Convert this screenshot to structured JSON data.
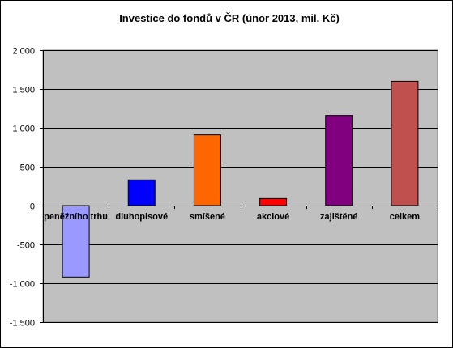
{
  "chart_data": {
    "type": "bar",
    "title": "Investice do fondů v ČR (únor 2013, mil. Kč)",
    "xlabel": "",
    "ylabel": "",
    "categories": [
      "peněžního trhu",
      "dluhopisové",
      "smíšené",
      "akciové",
      "zajištěné",
      "celkem"
    ],
    "values": [
      -920,
      330,
      910,
      90,
      1160,
      1600
    ],
    "ylim": [
      -1500,
      2000
    ],
    "yticks": [
      2000,
      1500,
      1000,
      500,
      0,
      -500,
      -1000,
      -1500
    ],
    "ytick_labels": [
      "2 000",
      "1 500",
      "1 000",
      "500",
      "0",
      "-500",
      "-1 000",
      "-1 500"
    ],
    "grid": true,
    "legend": "none",
    "colors": {
      "bars": [
        "#9999ff",
        "#0000ff",
        "#ff6600",
        "#ff0000",
        "#800080",
        "#c0504d"
      ],
      "plot_background": "#c0c0c0",
      "gridline": "#000000",
      "frame": "#808080"
    }
  }
}
